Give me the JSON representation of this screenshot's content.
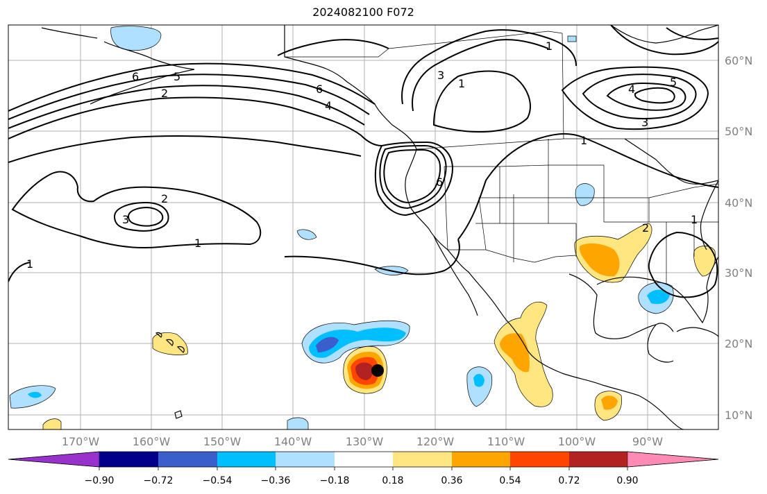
{
  "title": "2024082100 F072",
  "lat_ticks": [
    "60°N",
    "50°N",
    "40°N",
    "30°N",
    "20°N",
    "10°N"
  ],
  "lon_ticks": [
    "170°W",
    "160°W",
    "150°W",
    "140°W",
    "130°W",
    "120°W",
    "110°W",
    "100°W",
    "90°W"
  ],
  "contour_labels": [
    "1",
    "2",
    "3",
    "4",
    "5",
    "6"
  ],
  "colorbar": {
    "ticks": [
      "−0.90",
      "−0.72",
      "−0.54",
      "−0.36",
      "−0.18",
      "0.18",
      "0.36",
      "0.54",
      "0.72",
      "0.90"
    ],
    "colors": [
      "#9932cc",
      "#00008b",
      "#3a5fcd",
      "#00bfff",
      "#b0e0ff",
      "#ffffff",
      "#ffe680",
      "#ffa500",
      "#ff4500",
      "#b22222",
      "#ff8ab4"
    ]
  },
  "marker": {
    "lat": 16.5,
    "lon": -128.5,
    "color": "#000000"
  }
}
